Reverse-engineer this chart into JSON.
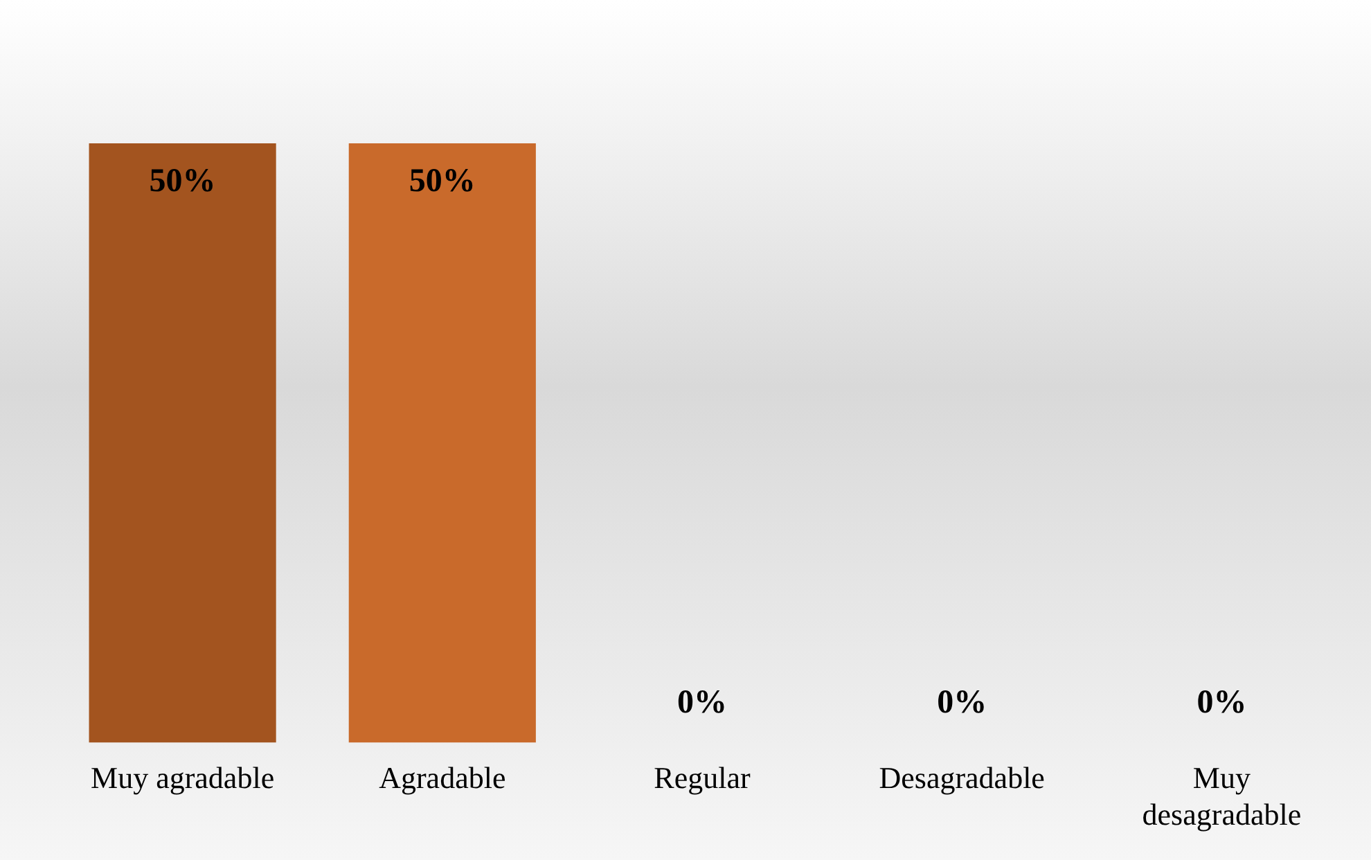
{
  "chart_data": {
    "type": "bar",
    "categories": [
      "Muy agradable",
      "Agradable",
      "Regular",
      "Desagradable",
      "Muy desagradable"
    ],
    "values": [
      50,
      50,
      0,
      0,
      0
    ],
    "colors": [
      "#a3541f",
      "#c96a2b",
      "#c96a2b",
      "#c96a2b",
      "#c96a2b"
    ],
    "value_labels": [
      "50%",
      "50%",
      "0%",
      "0%",
      "0%"
    ],
    "tick_labels": "x",
    "grid": false,
    "legend": false
  }
}
